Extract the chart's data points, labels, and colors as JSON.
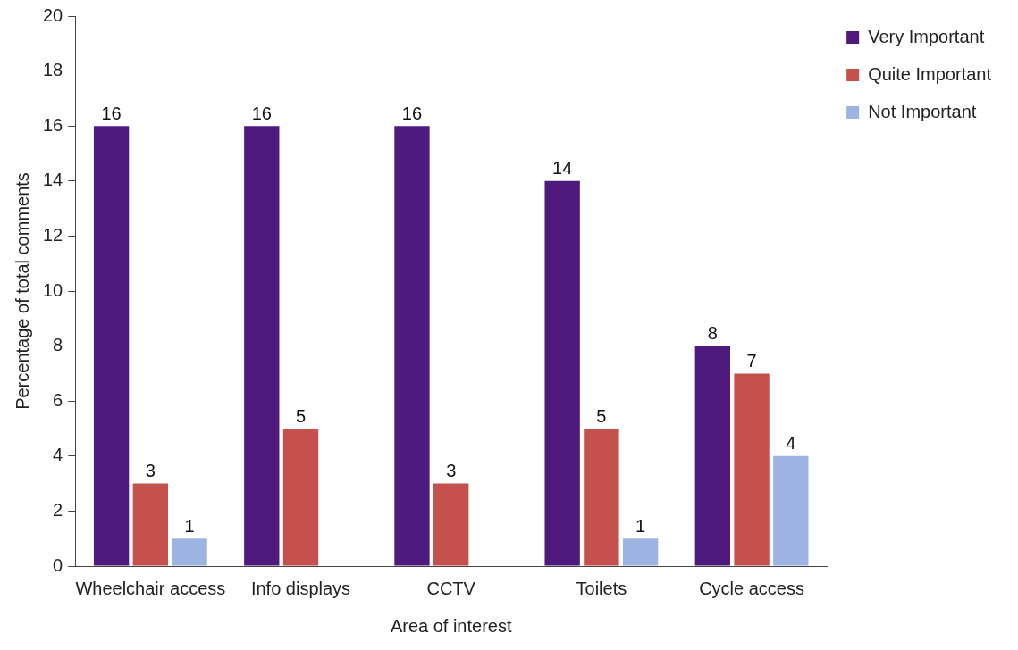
{
  "chart_data": {
    "type": "bar",
    "xlabel": "Area of interest",
    "ylabel": "Percentage of total comments",
    "categories": [
      "Wheelchair access",
      "Info displays",
      "CCTV",
      "Toilets",
      "Cycle access"
    ],
    "series": [
      {
        "name": "Very Important",
        "color": "#4e1a7e",
        "values": [
          16,
          16,
          16,
          14,
          8
        ]
      },
      {
        "name": "Quite Important",
        "color": "#c4514c",
        "values": [
          3,
          5,
          3,
          5,
          7
        ]
      },
      {
        "name": "Not Important",
        "color": "#9db4e2",
        "values": [
          1,
          null,
          null,
          1,
          4
        ]
      }
    ],
    "ylim": [
      0,
      20
    ],
    "yticks": [
      0,
      2,
      4,
      6,
      8,
      10,
      12,
      14,
      16,
      18,
      20
    ],
    "data_labels": true,
    "grid": false,
    "legend": "top right"
  }
}
